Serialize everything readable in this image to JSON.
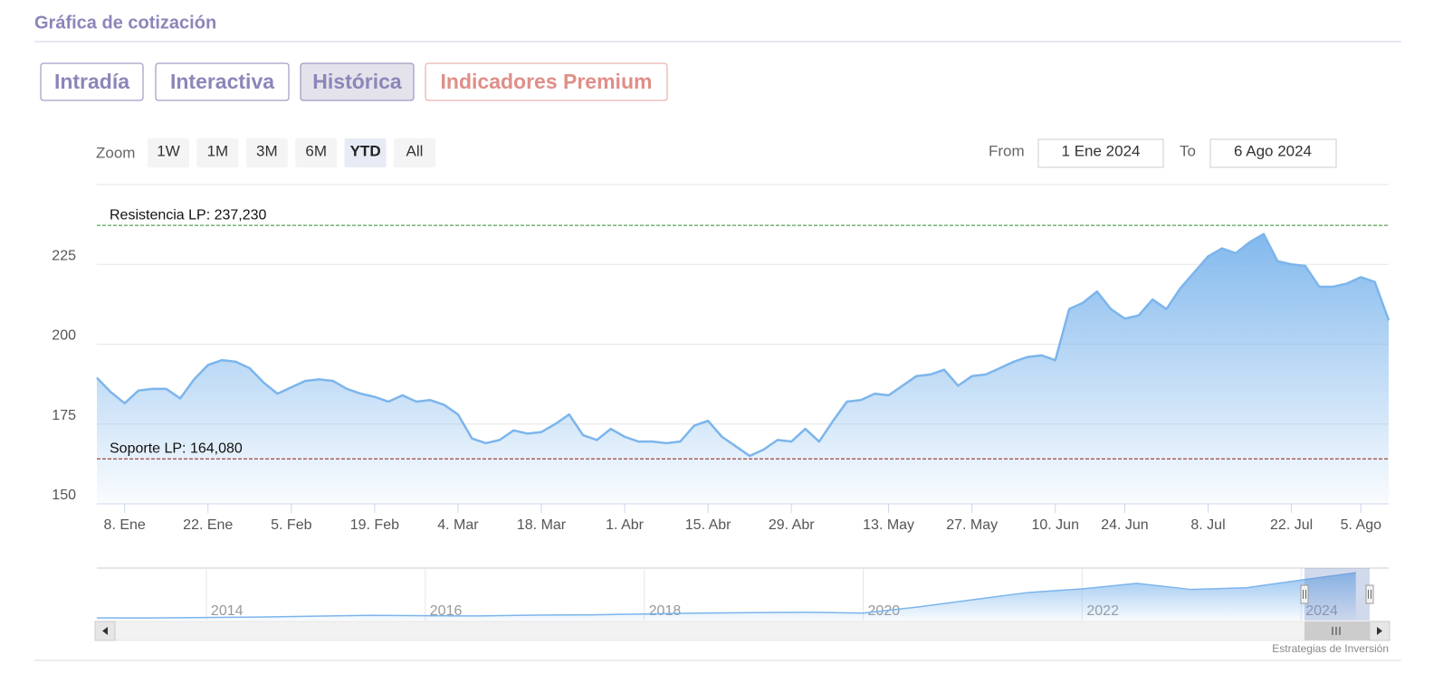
{
  "header": {
    "title": "Gráfica de cotización"
  },
  "tabs": {
    "items": [
      "Intradía",
      "Interactiva",
      "Histórica",
      "Indicadores Premium"
    ],
    "selected": 2
  },
  "zoom": {
    "label": "Zoom",
    "buttons": [
      "1W",
      "1M",
      "3M",
      "6M",
      "YTD",
      "All"
    ],
    "selected": 4,
    "from_label": "From",
    "from": "1 Ene 2024",
    "to_label": "To",
    "to": "6 Ago 2024"
  },
  "chart_data": {
    "type": "area",
    "color": "#7cb5ec",
    "categories": [
      null,
      null,
      "8. Ene",
      null,
      null,
      null,
      null,
      null,
      "22. Ene",
      null,
      null,
      null,
      null,
      null,
      "5. Feb",
      null,
      null,
      null,
      null,
      null,
      "19. Feb",
      null,
      null,
      null,
      null,
      null,
      "4. Mar",
      null,
      null,
      null,
      null,
      null,
      "18. Mar",
      null,
      null,
      null,
      null,
      null,
      "1. Abr",
      null,
      null,
      null,
      null,
      null,
      "15. Abr",
      null,
      null,
      null,
      null,
      null,
      "29. Abr",
      null,
      null,
      null,
      null,
      null,
      null,
      "13. May",
      null,
      null,
      null,
      null,
      null,
      "27. May",
      null,
      null,
      null,
      null,
      null,
      "10. Jun",
      null,
      null,
      null,
      null,
      "24. Jun",
      null,
      null,
      null,
      null,
      null,
      "8. Jul",
      null,
      null,
      null,
      null,
      null,
      "22. Jul",
      null,
      null,
      null,
      null,
      "5. Ago",
      null,
      null
    ],
    "values": [
      189.5,
      185,
      181.5,
      185.5,
      186,
      186,
      183,
      189,
      193.5,
      195,
      194.5,
      192.5,
      188,
      184.5,
      186.5,
      188.5,
      189,
      188.5,
      186,
      184.5,
      183.5,
      182,
      184,
      182,
      182.5,
      181,
      178,
      170.5,
      169,
      170,
      173,
      172,
      172.5,
      175,
      178,
      171.5,
      170,
      173.5,
      171,
      169.5,
      169.5,
      169,
      169.5,
      174.5,
      176,
      171,
      168,
      165,
      167,
      170,
      169.5,
      173.5,
      169.5,
      176,
      182,
      182.5,
      184.5,
      184,
      187,
      190,
      190.5,
      192,
      187,
      190,
      190.5,
      192.5,
      194.5,
      196,
      196.5,
      195,
      211,
      213,
      216.5,
      211,
      208,
      209,
      214,
      211,
      217.5,
      222.5,
      227.5,
      230,
      228.5,
      232,
      234.5,
      226,
      225,
      224.5,
      218,
      218,
      219,
      221,
      219.5,
      207.5
    ],
    "ylim": [
      150,
      250
    ],
    "yticks": [
      150,
      175,
      200,
      225
    ],
    "grid": true,
    "plot_lines": [
      {
        "label": "Resistencia LP: 237,230",
        "value": 237.23,
        "color": "#2e8b2e"
      },
      {
        "label": "Soporte LP: 164,080",
        "value": 164.08,
        "color": "#8b1a1a"
      }
    ]
  },
  "navigator": {
    "x": [
      2013,
      2013.5,
      2014,
      2014.5,
      2015,
      2015.5,
      2016,
      2016.5,
      2017,
      2017.5,
      2018,
      2018.5,
      2019,
      2019.5,
      2020,
      2020.5,
      2021,
      2021.5,
      2022,
      2022.5,
      2023,
      2023.5,
      2024,
      2024.5
    ],
    "values": [
      12,
      12,
      14,
      16,
      20,
      24,
      22,
      21,
      25,
      26,
      30,
      34,
      36,
      38,
      34,
      62,
      95,
      128,
      145,
      170,
      142,
      150,
      185,
      219
    ],
    "xlim": [
      2013,
      2024.8
    ],
    "ylim": [
      0,
      240
    ],
    "xticks": [
      2014,
      2016,
      2018,
      2020,
      2022,
      2024
    ]
  },
  "credit": "Estrategias de Inversión"
}
